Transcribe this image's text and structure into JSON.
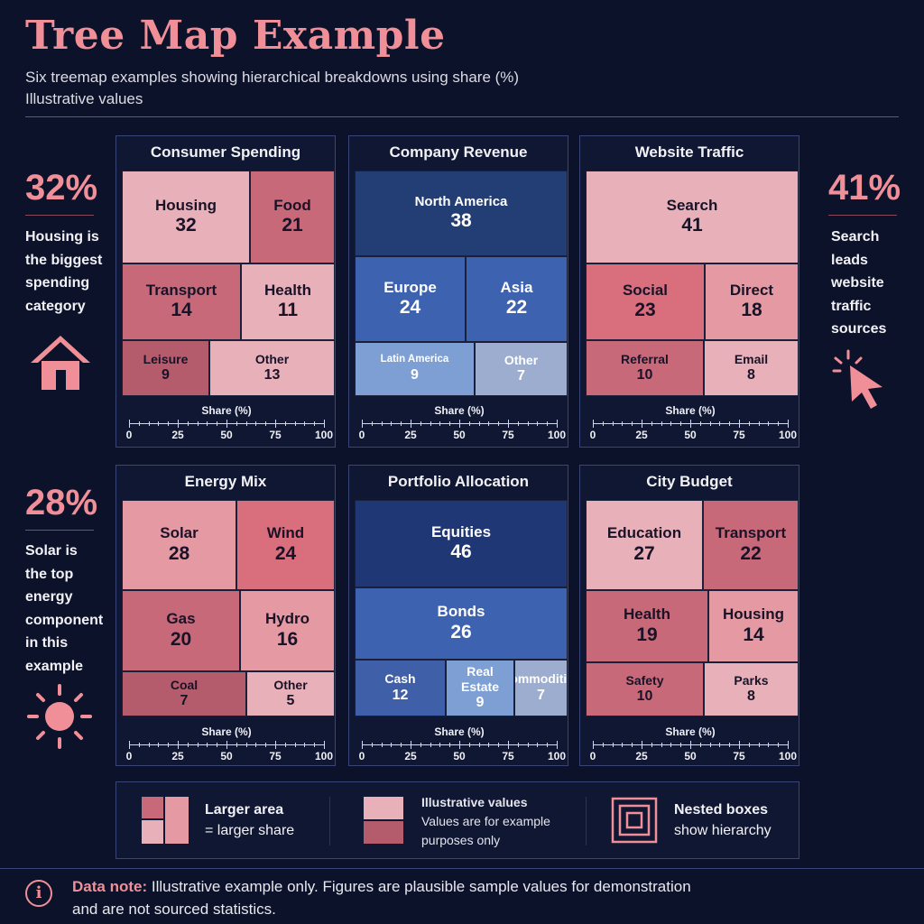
{
  "header": {
    "title": "Tree Map Example",
    "subtitle": "Six treemap examples showing hierarchical breakdowns using share (%)",
    "subtitle2": "Illustrative values"
  },
  "callouts": {
    "left_top": {
      "big": "32%",
      "lines": [
        "Housing is",
        "the biggest",
        "spending",
        "category"
      ],
      "icon": "house-icon"
    },
    "right_top": {
      "big": "41%",
      "lines": [
        "Search",
        "leads",
        "website",
        "traffic",
        "sources"
      ],
      "icon": "cursor-click-icon"
    },
    "left_bottom": {
      "big": "28%",
      "lines": [
        "Solar is",
        "the top",
        "energy",
        "component",
        "in this",
        "example"
      ],
      "icon": "sun-icon"
    }
  },
  "axis": {
    "title": "Share (%)",
    "ticks": [
      "0",
      "25",
      "50",
      "75",
      "100"
    ]
  },
  "colors": {
    "pink_light": "#e8b1ba",
    "pink_mid": "#e59aa3",
    "pink_dark": "#c8697a",
    "rose": "#d96f7d",
    "blue_dark": "#233e74",
    "blue_mid": "#3d62b0",
    "blue_light": "#7d9fd4",
    "blue_pale": "#9cadd0"
  },
  "chart_data": [
    {
      "type": "treemap",
      "title": "Consumer Spending",
      "items": [
        {
          "label": "Housing",
          "value": 32
        },
        {
          "label": "Food",
          "value": 21
        },
        {
          "label": "Transport",
          "value": 14
        },
        {
          "label": "Health",
          "value": 11
        },
        {
          "label": "Leisure",
          "value": 9
        },
        {
          "label": "Other",
          "value": 13
        }
      ]
    },
    {
      "type": "treemap",
      "title": "Company Revenue",
      "items": [
        {
          "label": "North America",
          "value": 38
        },
        {
          "label": "Europe",
          "value": 24
        },
        {
          "label": "Asia",
          "value": 22
        },
        {
          "label": "Latin America",
          "value": 9
        },
        {
          "label": "Other",
          "value": 7
        }
      ]
    },
    {
      "type": "treemap",
      "title": "Website Traffic",
      "items": [
        {
          "label": "Search",
          "value": 41
        },
        {
          "label": "Social",
          "value": 23
        },
        {
          "label": "Direct",
          "value": 18
        },
        {
          "label": "Referral",
          "value": 10
        },
        {
          "label": "Email",
          "value": 8
        }
      ]
    },
    {
      "type": "treemap",
      "title": "Energy Mix",
      "items": [
        {
          "label": "Solar",
          "value": 28
        },
        {
          "label": "Wind",
          "value": 24
        },
        {
          "label": "Gas",
          "value": 20
        },
        {
          "label": "Hydro",
          "value": 16
        },
        {
          "label": "Coal",
          "value": 7
        },
        {
          "label": "Other",
          "value": 5
        }
      ]
    },
    {
      "type": "treemap",
      "title": "Portfolio Allocation",
      "items": [
        {
          "label": "Equities",
          "value": 46
        },
        {
          "label": "Bonds",
          "value": 26
        },
        {
          "label": "Cash",
          "value": 12
        },
        {
          "label": "Real Estate",
          "value": 9
        },
        {
          "label": "Commodities",
          "value": 7
        }
      ]
    },
    {
      "type": "treemap",
      "title": "City Budget",
      "items": [
        {
          "label": "Education",
          "value": 27
        },
        {
          "label": "Transport",
          "value": 22
        },
        {
          "label": "Health",
          "value": 19
        },
        {
          "label": "Housing",
          "value": 14
        },
        {
          "label": "Safety",
          "value": 10
        },
        {
          "label": "Parks",
          "value": 8
        }
      ]
    }
  ],
  "legend": {
    "item1_line1": "Larger area",
    "item1_line2": "= larger share",
    "item2_title": "Illustrative values",
    "item2_line1": "Values are for example",
    "item2_line2": "purposes only",
    "item3_line1": "Nested boxes",
    "item3_line2": "show hierarchy"
  },
  "note": {
    "label": "Data note:",
    "text": " Illustrative example only. Figures are plausible sample values for demonstration and are not sourced statistics."
  }
}
